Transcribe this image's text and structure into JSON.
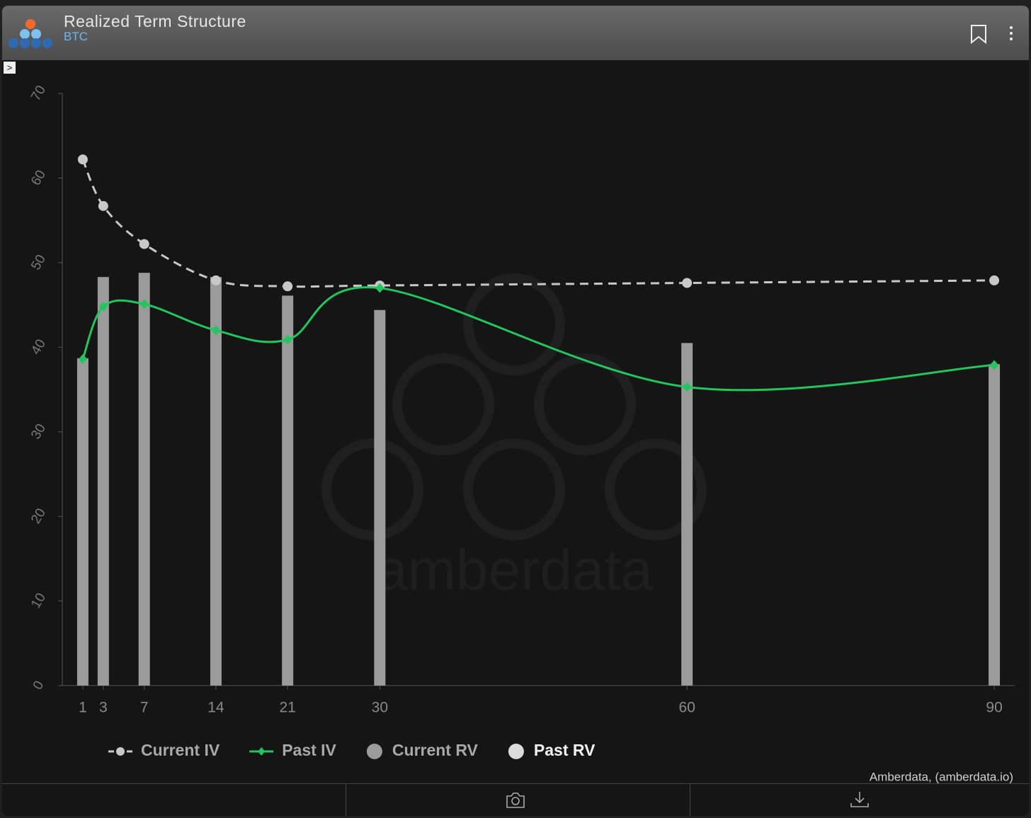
{
  "header": {
    "title": "Realized Term Structure",
    "subtitle": "BTC"
  },
  "chart_data": {
    "type": "combo",
    "watermark": "amberdata",
    "x": [
      1,
      3,
      7,
      14,
      21,
      30,
      60,
      90
    ],
    "xlim": [
      -1,
      92
    ],
    "xticks": [
      1,
      3,
      7,
      14,
      21,
      30,
      60,
      90
    ],
    "ylim": [
      0,
      70
    ],
    "yticks": [
      0,
      10,
      20,
      30,
      40,
      50,
      60,
      70
    ],
    "series": [
      {
        "name": "Current IV",
        "type": "line",
        "dashed": true,
        "color": "#c8c8c8",
        "values": [
          62.2,
          56.7,
          52.2,
          47.9,
          47.2,
          47.3,
          47.6,
          47.9
        ]
      },
      {
        "name": "Past IV",
        "type": "line",
        "dashed": false,
        "color": "#22c55e",
        "values": [
          38.6,
          44.8,
          45.1,
          42.0,
          40.9,
          47.0,
          35.3,
          37.9
        ]
      },
      {
        "name": "Current RV",
        "type": "bar",
        "color": "#9b9b9b",
        "values": [
          38.7,
          48.3,
          48.8,
          48.3,
          46.1,
          44.4,
          40.5,
          38.0
        ]
      },
      {
        "name": "Past RV",
        "type": "bar",
        "color": "#dcdcdc"
      }
    ],
    "credit": "Amberdata, (amberdata.io)"
  }
}
